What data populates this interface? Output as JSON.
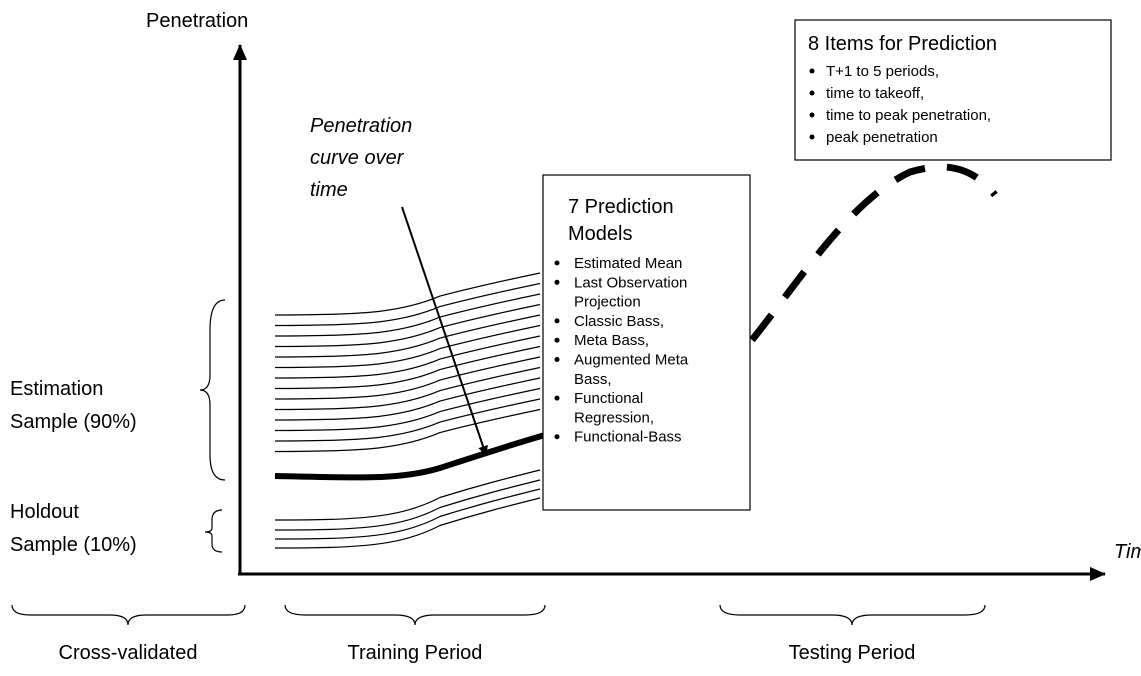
{
  "axes": {
    "y_label": "Penetration",
    "x_label": "Time"
  },
  "curve_note": [
    "Penetration",
    "curve over",
    "time"
  ],
  "groups": {
    "estimation": [
      "Estimation",
      "Sample (90%)"
    ],
    "holdout": [
      "Holdout",
      "Sample (10%)"
    ]
  },
  "periods": {
    "cross": "Cross-validated",
    "training": "Training Period",
    "testing": "Testing Period"
  },
  "models_box": {
    "title": [
      "7  Prediction",
      "Models"
    ],
    "items": [
      [
        "Estimated Mean"
      ],
      [
        "Last Observation",
        "Projection"
      ],
      [
        "Classic Bass,"
      ],
      [
        "Meta Bass,"
      ],
      [
        "Augmented Meta",
        "Bass,"
      ],
      [
        "Functional",
        "Regression,"
      ],
      [
        "Functional-Bass"
      ]
    ]
  },
  "items_box": {
    "title": "8 Items for Prediction",
    "items": [
      "T+1 to 5 periods,",
      "time to takeoff,",
      "time to peak penetration,",
      "peak penetration"
    ]
  }
}
